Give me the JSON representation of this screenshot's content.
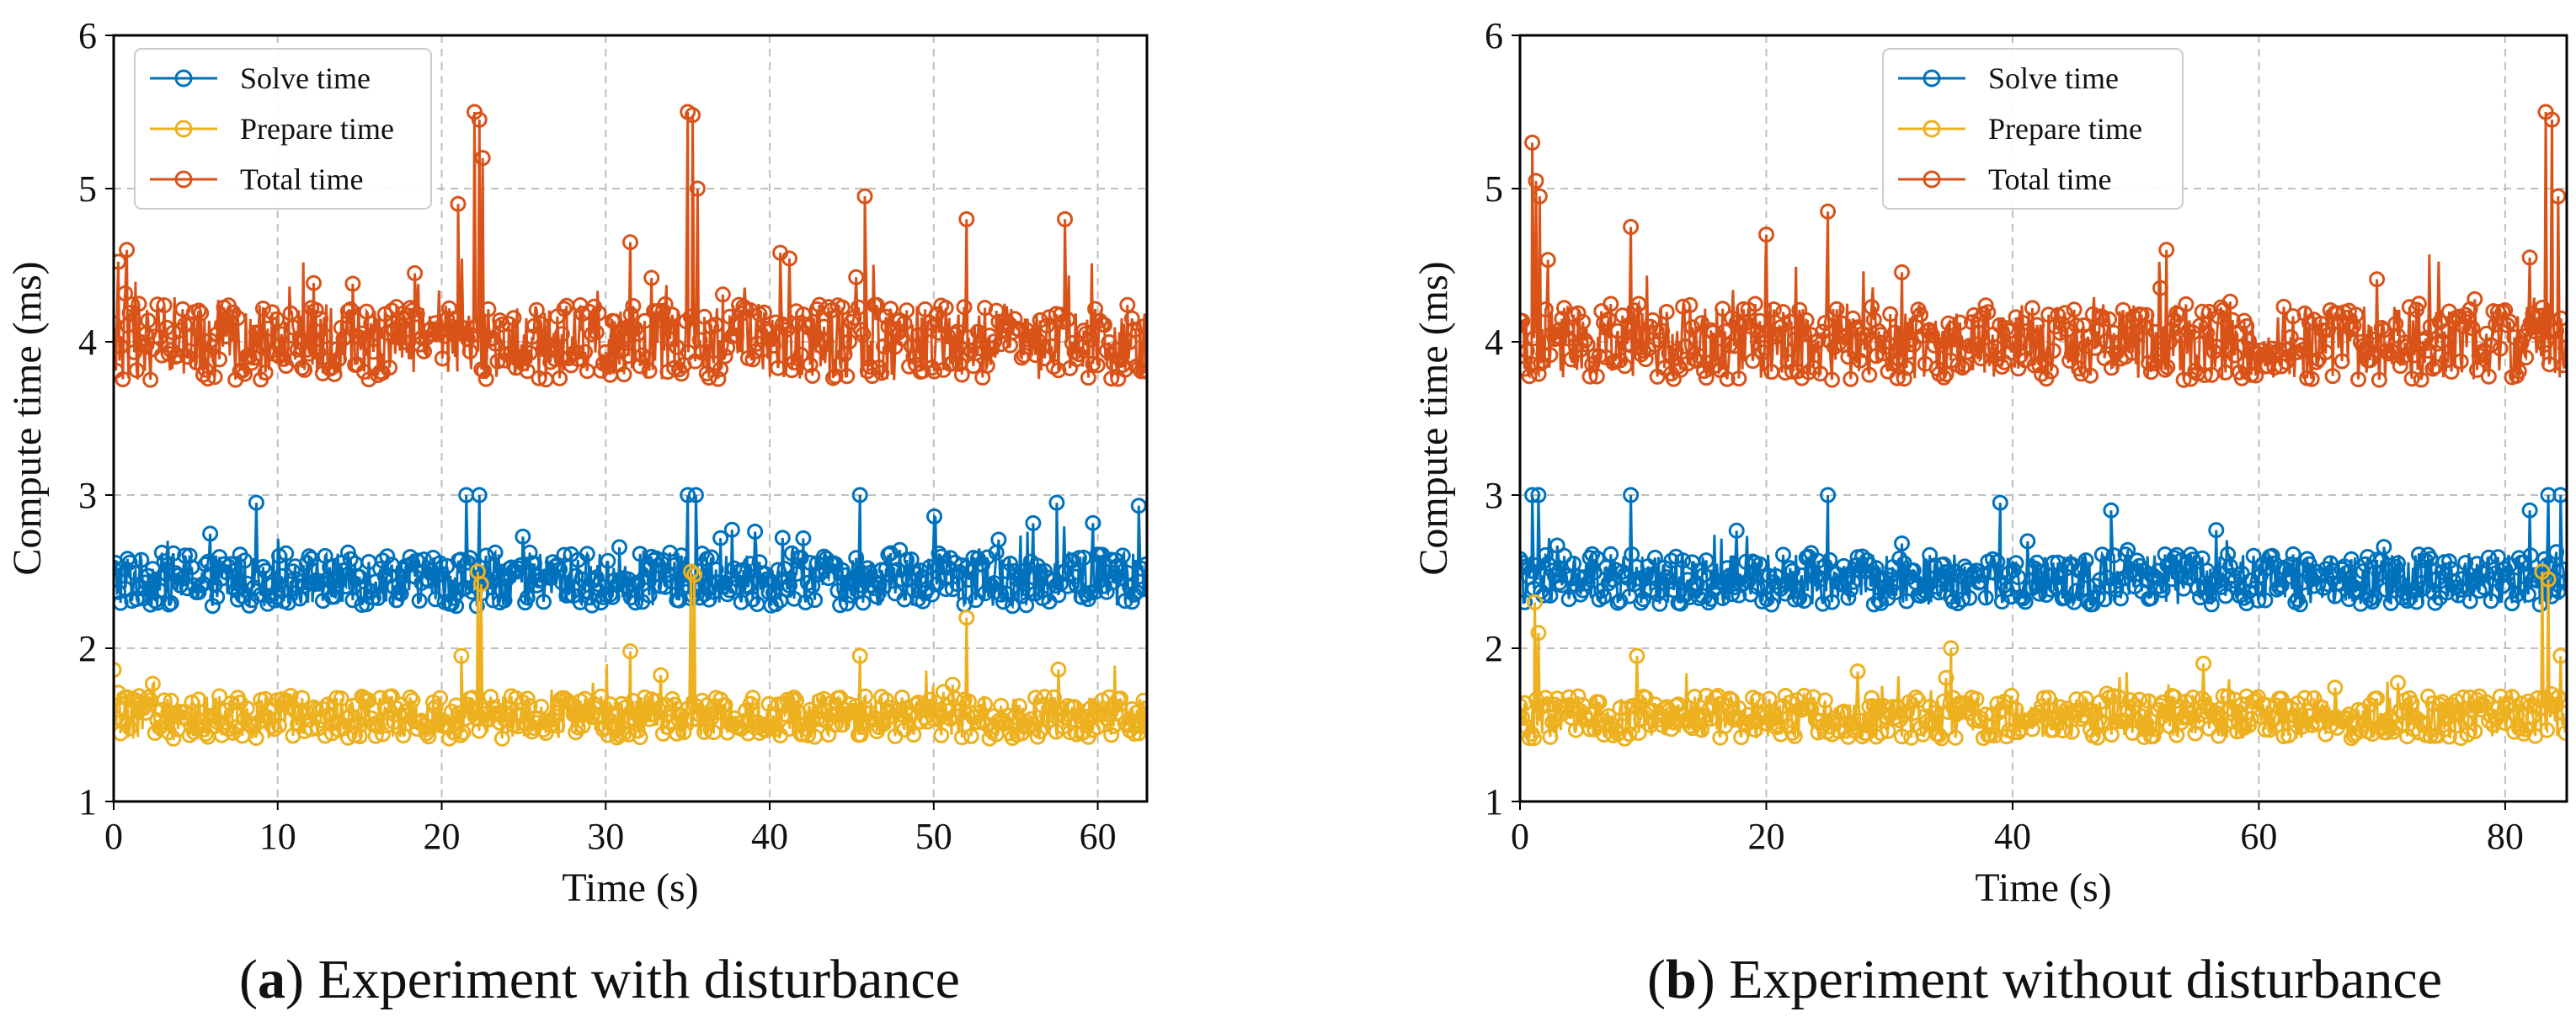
{
  "chart_data": [
    {
      "type": "line",
      "panel_letter": "a",
      "caption": " Experiment with disturbance",
      "xlabel": "Time (s)",
      "ylabel": "Compute time (ms)",
      "xlim": [
        0,
        63
      ],
      "ylim": [
        1,
        6
      ],
      "xticks": [
        0,
        10,
        20,
        30,
        40,
        50,
        60
      ],
      "yticks": [
        1,
        2,
        3,
        4,
        5,
        6
      ],
      "grid": true,
      "legend_position": "upper-left",
      "series": [
        {
          "name": "Solve time",
          "color": "#0072bd",
          "baseline": 2.45,
          "spread": 0.35,
          "spikes": [
            [
              8.7,
              2.95
            ],
            [
              21.5,
              3.0
            ],
            [
              22.3,
              3.0
            ],
            [
              35.0,
              3.0
            ],
            [
              35.5,
              3.0
            ],
            [
              45.5,
              3.0
            ],
            [
              57.5,
              2.95
            ],
            [
              62.5,
              2.93
            ]
          ]
        },
        {
          "name": "Prepare time",
          "color": "#edb120",
          "baseline": 1.55,
          "spread": 0.28,
          "spikes": [
            [
              21.2,
              1.95
            ],
            [
              22.2,
              2.5
            ],
            [
              22.4,
              2.42
            ],
            [
              35.2,
              2.5
            ],
            [
              35.4,
              2.48
            ],
            [
              52.0,
              2.2
            ],
            [
              45.5,
              1.95
            ],
            [
              31.5,
              1.98
            ]
          ]
        },
        {
          "name": "Total time",
          "color": "#d95319",
          "baseline": 4.0,
          "spread": 0.5,
          "spikes": [
            [
              21.0,
              4.9
            ],
            [
              22.0,
              5.5
            ],
            [
              22.3,
              5.45
            ],
            [
              22.5,
              5.2
            ],
            [
              35.0,
              5.5
            ],
            [
              35.3,
              5.48
            ],
            [
              35.6,
              5.0
            ],
            [
              45.8,
              4.95
            ],
            [
              52.0,
              4.8
            ],
            [
              58.0,
              4.8
            ],
            [
              0.8,
              4.6
            ],
            [
              31.5,
              4.65
            ]
          ]
        }
      ]
    },
    {
      "type": "line",
      "panel_letter": "b",
      "caption": " Experiment without disturbance",
      "xlabel": "Time (s)",
      "ylabel": "Compute time (ms)",
      "xlim": [
        0,
        85
      ],
      "ylim": [
        1,
        6
      ],
      "xticks": [
        0,
        20,
        40,
        60,
        80
      ],
      "yticks": [
        1,
        2,
        3,
        4,
        5,
        6
      ],
      "grid": true,
      "legend_position": "upper-center",
      "series": [
        {
          "name": "Solve time",
          "color": "#0072bd",
          "baseline": 2.45,
          "spread": 0.33,
          "spikes": [
            [
              1.0,
              3.0
            ],
            [
              1.5,
              3.0
            ],
            [
              9.0,
              3.0
            ],
            [
              25.0,
              3.0
            ],
            [
              39.0,
              2.95
            ],
            [
              48.0,
              2.9
            ],
            [
              82.0,
              2.9
            ],
            [
              83.5,
              3.0
            ],
            [
              84.5,
              3.0
            ]
          ]
        },
        {
          "name": "Prepare time",
          "color": "#edb120",
          "baseline": 1.55,
          "spread": 0.28,
          "spikes": [
            [
              1.2,
              2.3
            ],
            [
              1.5,
              2.1
            ],
            [
              9.5,
              1.95
            ],
            [
              35.0,
              2.0
            ],
            [
              55.5,
              1.9
            ],
            [
              83.0,
              2.5
            ],
            [
              83.5,
              2.45
            ],
            [
              84.5,
              1.95
            ]
          ]
        },
        {
          "name": "Total time",
          "color": "#d95319",
          "baseline": 4.0,
          "spread": 0.5,
          "spikes": [
            [
              1.0,
              5.3
            ],
            [
              1.3,
              5.05
            ],
            [
              1.6,
              4.95
            ],
            [
              9.0,
              4.75
            ],
            [
              20.0,
              4.7
            ],
            [
              25.0,
              4.85
            ],
            [
              52.5,
              4.6
            ],
            [
              82.0,
              4.55
            ],
            [
              83.3,
              5.5
            ],
            [
              83.8,
              5.45
            ],
            [
              84.3,
              4.95
            ]
          ]
        }
      ]
    }
  ]
}
